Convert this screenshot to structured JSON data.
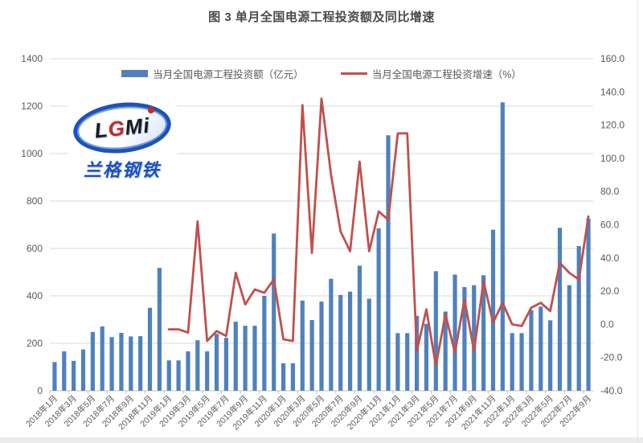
{
  "title": "图 3 单月全国电源工程投资额及同比增速",
  "legend": {
    "bar": "当月全国电源工程投资额（亿元）",
    "line": "当月全国电源工程投资增速（%）"
  },
  "watermark": {
    "logo_text": "LGMi",
    "brand_text": "兰格钢铁"
  },
  "colors": {
    "bar": "#4F81BD",
    "line": "#C0504D",
    "grid": "#D9D9D9",
    "axis_line": "#BFBFBF",
    "axis_text": "#595959",
    "title_text": "#4A4A4A"
  },
  "chart_data": {
    "type": "bar",
    "subtype": "combo-bar-line",
    "title": "图 3 单月全国电源工程投资额及同比增速",
    "xlabel": "",
    "ylabel_left": "当月全国电源工程投资额（亿元）",
    "ylabel_right": "当月全国电源工程投资增速（%）",
    "grid": true,
    "legend_position": "top",
    "left_axis": {
      "min": 0,
      "max": 1400,
      "step": 200
    },
    "right_axis": {
      "min": -40,
      "max": 160,
      "step": 20,
      "decimals": 1
    },
    "x_label_every": 2,
    "categories": [
      "2018年1月",
      "2018年2月",
      "2018年3月",
      "2018年4月",
      "2018年5月",
      "2018年6月",
      "2018年7月",
      "2018年8月",
      "2018年9月",
      "2018年10月",
      "2018年11月",
      "2018年12月",
      "2019年1月",
      "2019年2月",
      "2019年3月",
      "2019年4月",
      "2019年5月",
      "2019年6月",
      "2019年7月",
      "2019年8月",
      "2019年9月",
      "2019年10月",
      "2019年11月",
      "2019年12月",
      "2020年1月",
      "2020年2月",
      "2020年3月",
      "2020年4月",
      "2020年5月",
      "2020年6月",
      "2020年7月",
      "2020年8月",
      "2020年9月",
      "2020年10月",
      "2020年11月",
      "2020年12月",
      "2021年1月",
      "2021年2月",
      "2021年3月",
      "2021年4月",
      "2021年5月",
      "2021年6月",
      "2021年7月",
      "2021年8月",
      "2021年9月",
      "2021年10月",
      "2021年11月",
      "2021年12月",
      "2022年1月",
      "2022年2月",
      "2022年3月",
      "2022年4月",
      "2022年5月",
      "2022年6月",
      "2022年7月",
      "2022年8月",
      "2022年9月"
    ],
    "series": [
      {
        "name": "当月全国电源工程投资额（亿元）",
        "type": "bar",
        "axis": "left",
        "color": "#4F81BD",
        "values": [
          121,
          166,
          126,
          174,
          248,
          271,
          226,
          244,
          229,
          230,
          350,
          518,
          128,
          128,
          166,
          213,
          166,
          240,
          223,
          291,
          274,
          274,
          400,
          663,
          116,
          116,
          380,
          298,
          376,
          472,
          404,
          418,
          527,
          388,
          685,
          1077,
          243,
          243,
          316,
          282,
          504,
          334,
          490,
          437,
          445,
          487,
          679,
          1216,
          243,
          243,
          340,
          355,
          297,
          687,
          445,
          610,
          726
        ]
      },
      {
        "name": "当月全国电源工程投资增速（%）",
        "type": "line",
        "axis": "right",
        "color": "#C0504D",
        "values": [
          null,
          null,
          null,
          null,
          null,
          null,
          null,
          null,
          null,
          null,
          null,
          null,
          -3,
          -3,
          -5,
          62,
          -10,
          -4,
          -7,
          31,
          12,
          21,
          19,
          27,
          -9,
          -10,
          132,
          43,
          136,
          90,
          56,
          44,
          98,
          44,
          68,
          63,
          115,
          115,
          -16,
          9,
          -25,
          6,
          -17,
          15,
          -16,
          26,
          1,
          13,
          0,
          -1,
          10,
          13,
          8,
          37,
          31,
          27,
          65
        ]
      }
    ]
  }
}
